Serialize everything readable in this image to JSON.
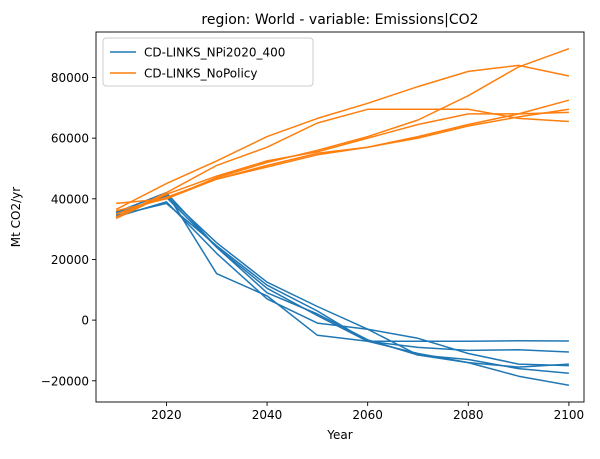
{
  "chart_data": {
    "type": "line",
    "title": "region: World - variable: Emissions|CO2",
    "xlabel": "Year",
    "ylabel": "Mt CO2/yr",
    "xlim": [
      2006,
      2103
    ],
    "ylim": [
      -27000,
      95000
    ],
    "x_ticks": [
      2020,
      2040,
      2060,
      2080,
      2100
    ],
    "y_ticks": [
      -20000,
      0,
      20000,
      40000,
      60000,
      80000
    ],
    "grid": false,
    "legend_position": "upper-left",
    "legend": [
      {
        "label": "CD-LINKS_NPi2020_400",
        "color": "#1f77b4"
      },
      {
        "label": "CD-LINKS_NoPolicy",
        "color": "#ff7f0e"
      }
    ],
    "series": [
      {
        "group": "CD-LINKS_NPi2020_400",
        "color": "#1f77b4",
        "x": [
          2010,
          2020,
          2030,
          2040,
          2050,
          2060,
          2070,
          2080,
          2090,
          2100
        ],
        "y": [
          35500,
          42000,
          15300,
          8000,
          -5000,
          -7000,
          -7000,
          -7000,
          -6800,
          -6900
        ]
      },
      {
        "group": "CD-LINKS_NPi2020_400",
        "color": "#1f77b4",
        "x": [
          2010,
          2020,
          2030,
          2040,
          2050,
          2060,
          2070,
          2080,
          2090,
          2100
        ],
        "y": [
          35000,
          40500,
          24000,
          10500,
          1500,
          -7000,
          -9000,
          -10000,
          -9800,
          -10500
        ]
      },
      {
        "group": "CD-LINKS_NPi2020_400",
        "color": "#1f77b4",
        "x": [
          2010,
          2020,
          2030,
          2040,
          2050,
          2060,
          2070,
          2080,
          2090,
          2100
        ],
        "y": [
          34000,
          39000,
          22000,
          7000,
          -1000,
          -3000,
          -6000,
          -11000,
          -14500,
          -15000
        ]
      },
      {
        "group": "CD-LINKS_NPi2020_400",
        "color": "#1f77b4",
        "x": [
          2010,
          2020,
          2030,
          2040,
          2050,
          2060,
          2070,
          2080,
          2090,
          2100
        ],
        "y": [
          34500,
          38500,
          24500,
          11500,
          3000,
          -7000,
          -11000,
          -14000,
          -15500,
          -14500
        ]
      },
      {
        "group": "CD-LINKS_NPi2020_400",
        "color": "#1f77b4",
        "x": [
          2010,
          2020,
          2030,
          2040,
          2050,
          2060,
          2070,
          2080,
          2090,
          2100
        ],
        "y": [
          35000,
          41000,
          25500,
          12500,
          4500,
          -3000,
          -11500,
          -13000,
          -16000,
          -17500
        ]
      },
      {
        "group": "CD-LINKS_NPi2020_400",
        "color": "#1f77b4",
        "x": [
          2010,
          2020,
          2030,
          2040,
          2050,
          2060,
          2070,
          2080,
          2090,
          2100
        ],
        "y": [
          35500,
          42000,
          24000,
          9000,
          2000,
          -6500,
          -11500,
          -14000,
          -18500,
          -21500
        ]
      },
      {
        "group": "CD-LINKS_NoPolicy",
        "color": "#ff7f0e",
        "x": [
          2010,
          2020,
          2030,
          2040,
          2050,
          2060,
          2070,
          2080,
          2090,
          2100
        ],
        "y": [
          38500,
          40000,
          47000,
          52000,
          56000,
          60500,
          66000,
          74000,
          83500,
          89500
        ]
      },
      {
        "group": "CD-LINKS_NoPolicy",
        "color": "#ff7f0e",
        "x": [
          2010,
          2020,
          2030,
          2040,
          2050,
          2060,
          2070,
          2080,
          2090,
          2100
        ],
        "y": [
          36500,
          45000,
          52500,
          60500,
          66500,
          71500,
          77000,
          82000,
          84000,
          80500
        ]
      },
      {
        "group": "CD-LINKS_NoPolicy",
        "color": "#ff7f0e",
        "x": [
          2010,
          2020,
          2030,
          2040,
          2050,
          2060,
          2070,
          2080,
          2090,
          2100
        ],
        "y": [
          34000,
          42000,
          51000,
          57000,
          65000,
          69500,
          69500,
          69500,
          66500,
          65500
        ]
      },
      {
        "group": "CD-LINKS_NoPolicy",
        "color": "#ff7f0e",
        "x": [
          2010,
          2020,
          2030,
          2040,
          2050,
          2060,
          2070,
          2080,
          2090,
          2100
        ],
        "y": [
          35000,
          40500,
          46500,
          51000,
          55000,
          57000,
          60500,
          64500,
          68000,
          72500
        ]
      },
      {
        "group": "CD-LINKS_NoPolicy",
        "color": "#ff7f0e",
        "x": [
          2010,
          2020,
          2030,
          2040,
          2050,
          2060,
          2070,
          2080,
          2090,
          2100
        ],
        "y": [
          33500,
          41500,
          47500,
          52500,
          55500,
          60000,
          64500,
          68000,
          68000,
          68500
        ]
      },
      {
        "group": "CD-LINKS_NoPolicy",
        "color": "#ff7f0e",
        "x": [
          2010,
          2020,
          2030,
          2040,
          2050,
          2060,
          2070,
          2080,
          2090,
          2100
        ],
        "y": [
          36000,
          40000,
          46500,
          50500,
          54500,
          57000,
          60000,
          64000,
          67000,
          69500
        ]
      }
    ]
  }
}
